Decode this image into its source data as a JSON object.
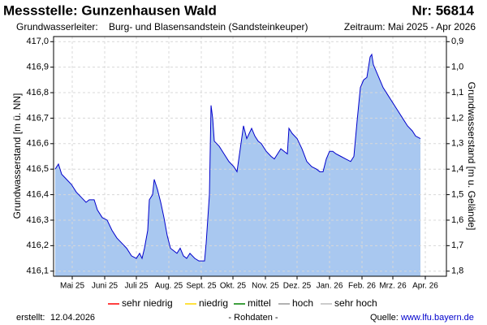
{
  "chart_data": {
    "type": "area",
    "title": "Messstelle: Gunzenhausen Wald",
    "number": "Nr: 56814",
    "aquifer_label": "Grundwasserleiter:",
    "aquifer": "Burg- und Blasensandstein (Sandsteinkeuper)",
    "period": "Zeitraum: Mai 2025 - Apr 2026",
    "ylabel": "Grundwasserstand [m ü. NN]",
    "y2label": "Grundwasserstand [m u. Gelände]",
    "color": "#0000cc",
    "fill_color": "#a9c8f0",
    "grid": true,
    "xlim": [
      0,
      484
    ],
    "xticks": [
      {
        "value": 23,
        "label": "Mai 25"
      },
      {
        "value": 63,
        "label": "Juni 25"
      },
      {
        "value": 102,
        "label": "Juli 25"
      },
      {
        "value": 142,
        "label": "Aug. 25"
      },
      {
        "value": 182,
        "label": "Sept. 25"
      },
      {
        "value": 221,
        "label": "Okt. 25"
      },
      {
        "value": 261,
        "label": "Nov. 25"
      },
      {
        "value": 300,
        "label": "Dez. 25"
      },
      {
        "value": 340,
        "label": "Jan. 26"
      },
      {
        "value": 380,
        "label": "Feb. 26"
      },
      {
        "value": 418,
        "label": "Mrz. 26"
      },
      {
        "value": 458,
        "label": "Apr. 26"
      }
    ],
    "ylim": [
      416.08,
      417.02
    ],
    "yticks": [
      {
        "value": 416.1,
        "label": "416,1"
      },
      {
        "value": 416.2,
        "label": "416,2"
      },
      {
        "value": 416.3,
        "label": "416,3"
      },
      {
        "value": 416.4,
        "label": "416,4"
      },
      {
        "value": 416.5,
        "label": "416,5"
      },
      {
        "value": 416.6,
        "label": "416,6"
      },
      {
        "value": 416.7,
        "label": "416,7"
      },
      {
        "value": 416.8,
        "label": "416,8"
      },
      {
        "value": 416.9,
        "label": "416,9"
      },
      {
        "value": 417.0,
        "label": "417,0"
      }
    ],
    "y2lim": [
      1.82,
      0.88
    ],
    "y2ticks": [
      {
        "value": 0.9,
        "label": "0,9"
      },
      {
        "value": 1.0,
        "label": "1,0"
      },
      {
        "value": 1.1,
        "label": "1,1"
      },
      {
        "value": 1.2,
        "label": "1,2"
      },
      {
        "value": 1.3,
        "label": "1,3"
      },
      {
        "value": 1.4,
        "label": "1,4"
      },
      {
        "value": 1.5,
        "label": "1,5"
      },
      {
        "value": 1.6,
        "label": "1,6"
      },
      {
        "value": 1.7,
        "label": "1,7"
      },
      {
        "value": 1.8,
        "label": "1,8"
      }
    ],
    "x": [
      2,
      6,
      10,
      16,
      22,
      28,
      34,
      40,
      44,
      50,
      54,
      60,
      66,
      72,
      78,
      84,
      90,
      96,
      102,
      106,
      109,
      112,
      116,
      118,
      122,
      124,
      128,
      132,
      136,
      140,
      144,
      148,
      152,
      156,
      160,
      164,
      168,
      174,
      179,
      186,
      188,
      192,
      194,
      196,
      198,
      204,
      210,
      216,
      222,
      226,
      230,
      234,
      238,
      244,
      248,
      252,
      256,
      262,
      268,
      272,
      276,
      280,
      284,
      288,
      290,
      294,
      300,
      306,
      312,
      318,
      324,
      328,
      332,
      336,
      340,
      344,
      348,
      354,
      360,
      366,
      370,
      374,
      378,
      382,
      386,
      390,
      392,
      394,
      398,
      402,
      406,
      412,
      418,
      424,
      430,
      436,
      442,
      446,
      452
    ],
    "values": [
      416.5,
      416.52,
      416.48,
      416.46,
      416.44,
      416.41,
      416.39,
      416.37,
      416.38,
      416.38,
      416.34,
      416.31,
      416.3,
      416.26,
      416.23,
      416.21,
      416.19,
      416.16,
      416.15,
      416.17,
      416.15,
      416.19,
      416.26,
      416.38,
      416.4,
      416.46,
      416.42,
      416.37,
      416.31,
      416.24,
      416.19,
      416.18,
      416.17,
      416.19,
      416.16,
      416.15,
      416.17,
      416.15,
      416.14,
      416.14,
      416.21,
      416.4,
      416.75,
      416.7,
      416.61,
      416.59,
      416.56,
      416.53,
      416.51,
      416.49,
      416.58,
      416.67,
      416.62,
      416.66,
      416.63,
      416.61,
      416.6,
      416.57,
      416.55,
      416.54,
      416.56,
      416.58,
      416.57,
      416.56,
      416.66,
      416.64,
      416.62,
      416.58,
      416.53,
      416.51,
      416.5,
      416.49,
      416.49,
      416.54,
      416.57,
      416.57,
      416.56,
      416.55,
      416.54,
      416.53,
      416.55,
      416.69,
      416.82,
      416.85,
      416.86,
      416.94,
      416.95,
      416.91,
      416.88,
      416.85,
      416.82,
      416.79,
      416.76,
      416.73,
      416.7,
      416.67,
      416.65,
      416.63,
      416.62
    ],
    "legend": [
      {
        "name": "sehr niedrig",
        "color": "#ff0000"
      },
      {
        "name": "niedrig",
        "color": "#ffd700"
      },
      {
        "name": "mittel",
        "color": "#008000"
      },
      {
        "name": "hoch",
        "color": "#999999"
      },
      {
        "name": "sehr hoch",
        "color": "#bbbbbb"
      }
    ]
  },
  "footer": {
    "created_label": "erstellt:",
    "created": "12.04.2026",
    "note": "- Rohdaten -",
    "source_label": "Quelle:",
    "source": "www.lfu.bayern.de"
  }
}
